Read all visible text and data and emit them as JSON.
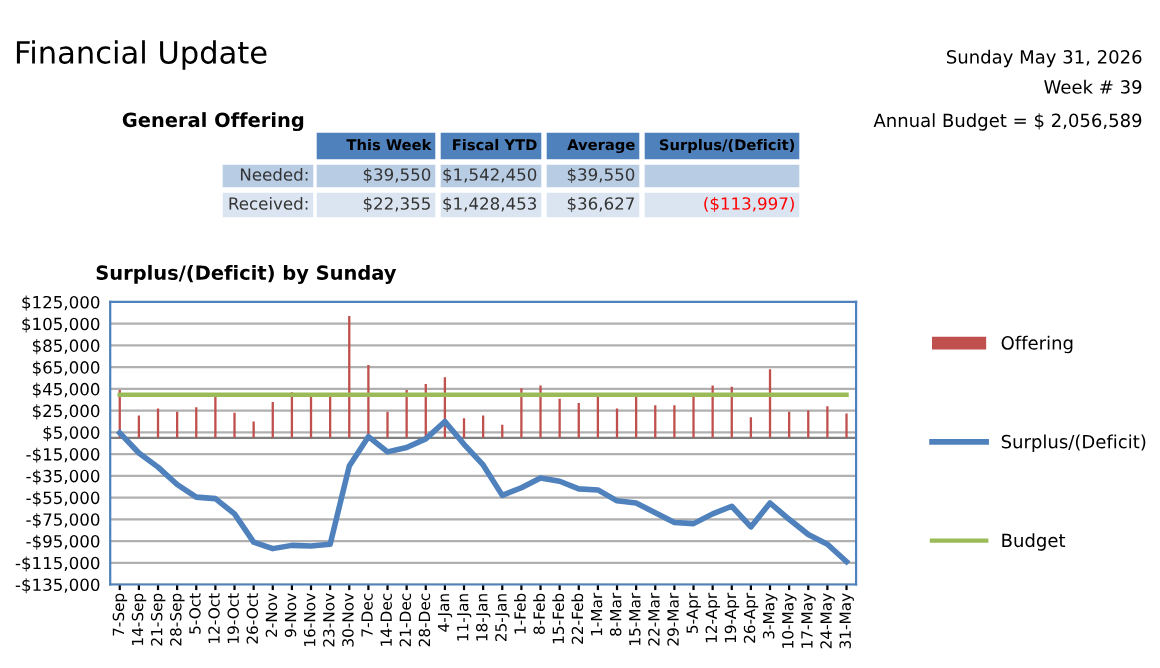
{
  "chart_data": {
    "type": "bar",
    "title": "Financial Update",
    "subtitle": "Surplus/(Deficit) by Sunday",
    "annotations": [
      "Sunday May 31, 2026",
      "Week # 39",
      "Annual Budget = $ 2,056,589",
      "General Offering",
      "This Week",
      "Fiscal YTD",
      "Average",
      "Surplus/(Deficit)",
      "Needed:",
      "$39,550",
      "$1,542,450",
      "$39,550",
      "Received:",
      "$22,355",
      "$1,428,453",
      "$36,627",
      "($113,997)"
    ],
    "categories": [
      "7-Sep",
      "14-Sep",
      "21-Sep",
      "28-Sep",
      "5-Oct",
      "12-Oct",
      "19-Oct",
      "26-Oct",
      "2-Nov",
      "9-Nov",
      "16-Nov",
      "23-Nov",
      "30-Nov",
      "7-Dec",
      "14-Dec",
      "21-Dec",
      "28-Dec",
      "4-Jan",
      "11-Jan",
      "18-Jan",
      "25-Jan",
      "1-Feb",
      "8-Feb",
      "15-Feb",
      "22-Feb",
      "1-Mar",
      "8-Mar",
      "15-Mar",
      "22-Mar",
      "29-Mar",
      "5-Apr",
      "12-Apr",
      "19-Apr",
      "26-Apr",
      "3-May",
      "10-May",
      "17-May",
      "24-May",
      "31-May"
    ],
    "series": [
      {
        "name": "Offering",
        "color": "#c0504d",
        "values": [
          44000,
          20500,
          27000,
          24000,
          28000,
          38000,
          23000,
          15000,
          33000,
          42000,
          38000,
          38000,
          112000,
          67000,
          24000,
          44000,
          49500,
          55600,
          18000,
          20500,
          12000,
          45600,
          48000,
          36000,
          32000,
          38000,
          27000,
          38000,
          30000,
          30000,
          38000,
          48000,
          47000,
          19000,
          63000,
          24000,
          25000,
          29000,
          22355
        ]
      },
      {
        "name": "Surplus/(Deficit)",
        "type": "line",
        "color": "#4f81bd",
        "values": [
          4500,
          -14000,
          -27000,
          -43000,
          -54600,
          -56000,
          -70000,
          -96000,
          -102000,
          -99000,
          -99500,
          -98000,
          -26000,
          1000,
          -13000,
          -9000,
          -1000,
          15000,
          -6000,
          -25000,
          -53000,
          -46000,
          -37000,
          -40000,
          -47000,
          -48000,
          -58000,
          -60000,
          -69000,
          -78000,
          -79000,
          -70000,
          -63000,
          -82000,
          -60000,
          -75000,
          -89000,
          -98000,
          -113997
        ]
      },
      {
        "name": "Budget",
        "type": "line",
        "color": "#9bbb59",
        "values": [
          39550,
          39550,
          39550,
          39550,
          39550,
          39550,
          39550,
          39550,
          39550,
          39550,
          39550,
          39550,
          39550,
          39550,
          39550,
          39550,
          39550,
          39550,
          39550,
          39550,
          39550,
          39550,
          39550,
          39550,
          39550,
          39550,
          39550,
          39550,
          39550,
          39550,
          39550,
          39550,
          39550,
          39550,
          39550,
          39550,
          39550,
          39550,
          39550
        ]
      }
    ],
    "ylim": [
      -135000,
      125000
    ],
    "yticks": [
      {
        "value": -135000,
        "label": "-$135,000"
      },
      {
        "value": -115000,
        "label": "-$115,000"
      },
      {
        "value": -95000,
        "label": "-$95,000"
      },
      {
        "value": -75000,
        "label": "-$75,000"
      },
      {
        "value": -55000,
        "label": "-$55,000"
      },
      {
        "value": -35000,
        "label": "-$35,000"
      },
      {
        "value": -15000,
        "label": "-$15,000"
      },
      {
        "value": 5000,
        "label": "$5,000"
      },
      {
        "value": 25000,
        "label": "$25,000"
      },
      {
        "value": 45000,
        "label": "$45,000"
      },
      {
        "value": 65000,
        "label": "$65,000"
      },
      {
        "value": 85000,
        "label": "$85,000"
      },
      {
        "value": 105000,
        "label": "$105,000"
      },
      {
        "value": 125000,
        "label": "$125,000"
      }
    ],
    "grid": "y",
    "legend": "right",
    "marker": "none",
    "line_style": "solid"
  }
}
